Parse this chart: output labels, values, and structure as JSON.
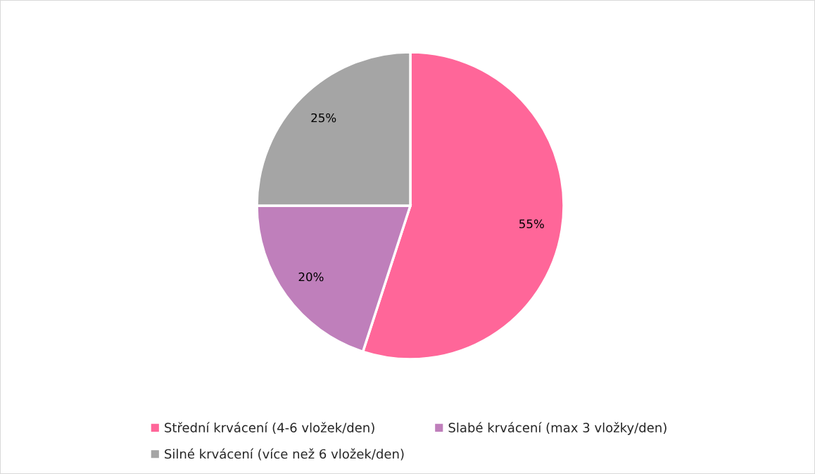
{
  "chart_data": {
    "type": "pie",
    "categories": [
      "Střední krvácení (4-6 vložek/den)",
      "Slabé krvácení (max 3 vložky/den)",
      "Silné krvácení (více než 6 vložek/den)"
    ],
    "values": [
      55,
      20,
      25
    ],
    "value_labels": [
      "55%",
      "20%",
      "25%"
    ],
    "colors": [
      "#ff6699",
      "#bf7fbb",
      "#a5a5a5"
    ],
    "legend": "bottom"
  }
}
